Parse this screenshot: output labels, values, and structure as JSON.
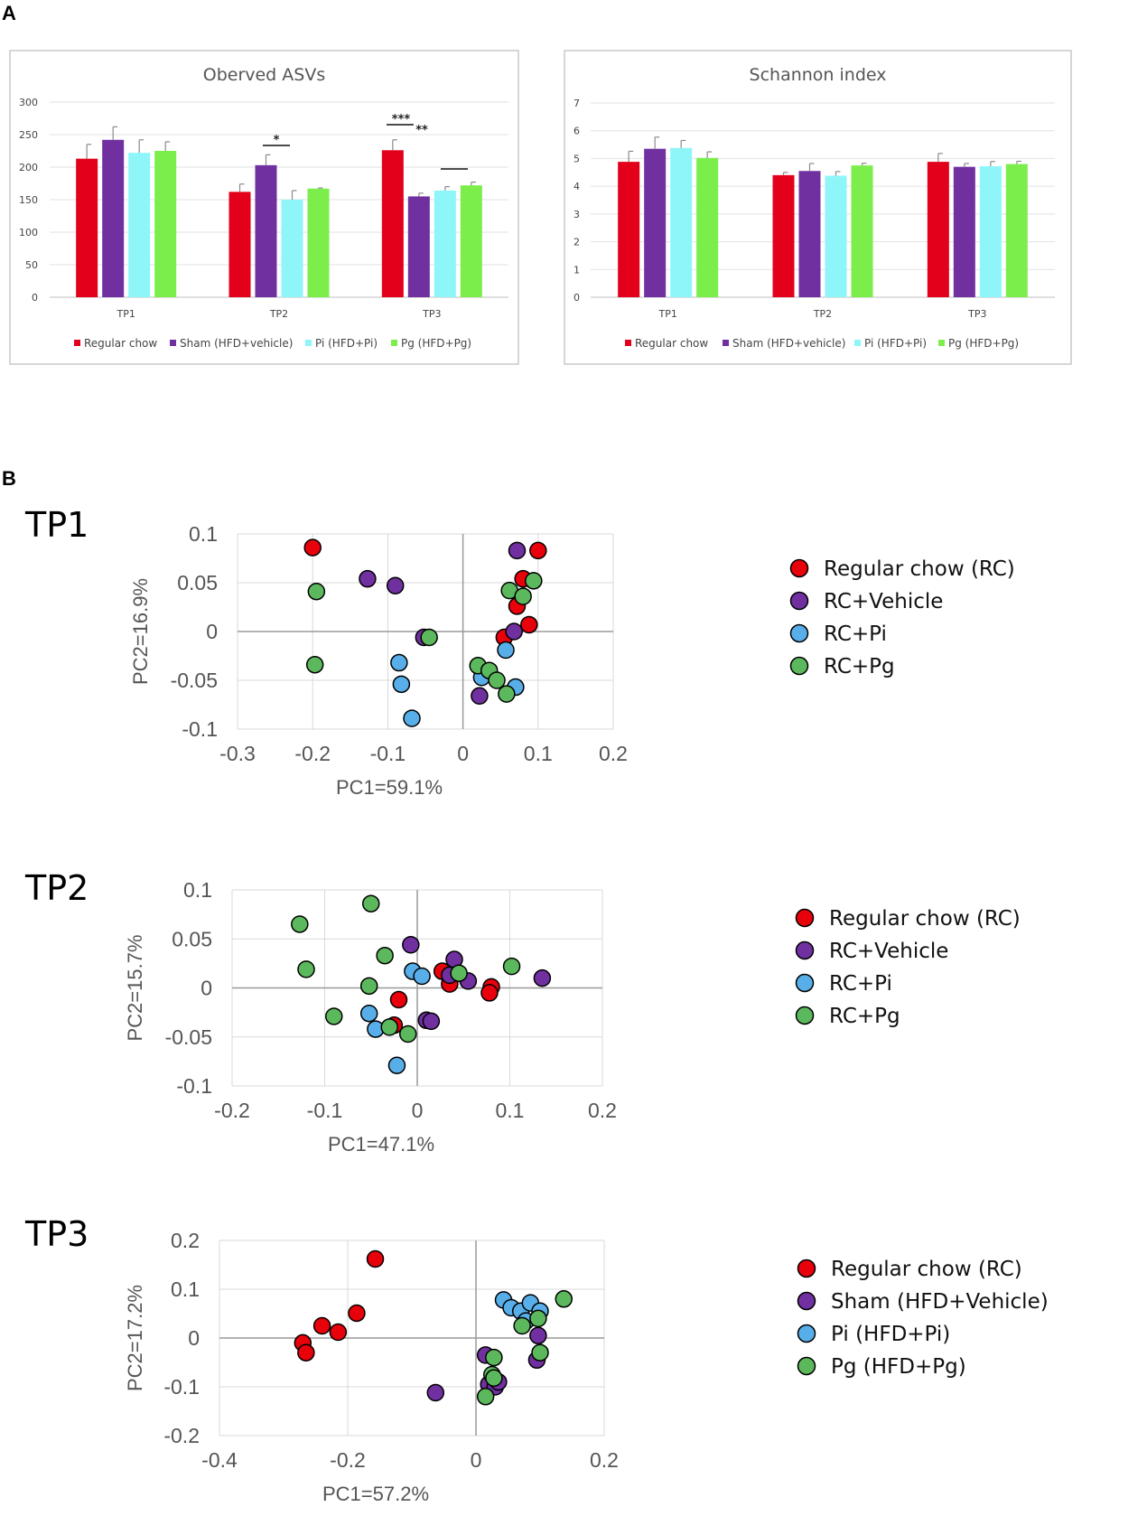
{
  "panel_labels": {
    "a": "A",
    "b": "B"
  },
  "chart_data": [
    {
      "type": "bar",
      "title": "Oberved ASVs",
      "categories": [
        "TP1",
        "TP2",
        "TP3"
      ],
      "ylim": [
        0,
        300
      ],
      "yticks": [
        "0",
        "50",
        "100",
        "150",
        "200",
        "250",
        "300"
      ],
      "series": [
        {
          "name": "Regular chow",
          "color": "#e3001b",
          "values": [
            213,
            162,
            226
          ],
          "errors": [
            22,
            12,
            16
          ]
        },
        {
          "name": "Sham (HFD+vehicle)",
          "color": "#7030a0",
          "values": [
            242,
            203,
            155
          ],
          "errors": [
            20,
            16,
            5
          ]
        },
        {
          "name": "Pi (HFD+Pi)",
          "color": "#8ef6f9",
          "values": [
            222,
            150,
            164
          ],
          "errors": [
            20,
            14,
            6
          ]
        },
        {
          "name": "Pg (HFD+Pg)",
          "color": "#7bee4c",
          "values": [
            225,
            167,
            172
          ],
          "errors": [
            14,
            1,
            5
          ]
        }
      ],
      "significance": [
        {
          "category": "TP2",
          "label": "*"
        },
        {
          "category": "TP3",
          "label": "***"
        },
        {
          "category": "TP3",
          "label": "**"
        },
        {
          "category": "TP3",
          "label": ""
        }
      ]
    },
    {
      "type": "bar",
      "title": "Schannon index",
      "categories": [
        "TP1",
        "TP2",
        "TP3"
      ],
      "ylim": [
        0,
        7
      ],
      "yticks": [
        "0",
        "1",
        "2",
        "3",
        "4",
        "5",
        "6",
        "7"
      ],
      "series": [
        {
          "name": "Regular chow",
          "color": "#e3001b",
          "values": [
            4.88,
            4.4,
            4.88
          ],
          "errors": [
            0.38,
            0.1,
            0.3
          ]
        },
        {
          "name": "Sham (HFD+vehicle)",
          "color": "#7030a0",
          "values": [
            5.35,
            4.55,
            4.7
          ],
          "errors": [
            0.42,
            0.27,
            0.12
          ]
        },
        {
          "name": "Pi (HFD+Pi)",
          "color": "#8ef6f9",
          "values": [
            5.38,
            4.38,
            4.72
          ],
          "errors": [
            0.27,
            0.15,
            0.17
          ]
        },
        {
          "name": "Pg (HFD+Pg)",
          "color": "#7bee4c",
          "values": [
            5.02,
            4.75,
            4.8
          ],
          "errors": [
            0.22,
            0.08,
            0.1
          ]
        }
      ]
    },
    {
      "type": "scatter",
      "title": "TP1",
      "xlabel": "PC1=59.1%",
      "ylabel": "PC2=16.9%",
      "xlim": [
        -0.3,
        0.2
      ],
      "ylim": [
        -0.1,
        0.1
      ],
      "xticks": [
        "-0.3",
        "-0.2",
        "-0.1",
        "0",
        "0.1",
        "0.2"
      ],
      "yticks": [
        "-0.1",
        "-0.05",
        "0",
        "0.05",
        "0.1"
      ],
      "legend": [
        "Regular chow (RC)",
        "RC+Vehicle",
        "RC+Pi",
        "RC+Pg"
      ],
      "series": [
        {
          "name": "Regular chow (RC)",
          "color": "#e8000b",
          "points": [
            [
              -0.2,
              0.086
            ],
            [
              0.1,
              0.083
            ],
            [
              0.08,
              0.054
            ],
            [
              0.072,
              0.026
            ],
            [
              0.088,
              0.007
            ],
            [
              0.055,
              -0.006
            ]
          ]
        },
        {
          "name": "RC+Vehicle",
          "color": "#7030a0",
          "points": [
            [
              -0.127,
              0.054
            ],
            [
              -0.09,
              0.047
            ],
            [
              -0.052,
              -0.006
            ],
            [
              0.072,
              0.083
            ],
            [
              0.068,
              0.0
            ],
            [
              0.022,
              -0.066
            ]
          ]
        },
        {
          "name": "RC+Pi",
          "color": "#58aee8",
          "points": [
            [
              -0.085,
              -0.032
            ],
            [
              -0.082,
              -0.054
            ],
            [
              -0.068,
              -0.089
            ],
            [
              0.057,
              -0.019
            ],
            [
              0.025,
              -0.047
            ],
            [
              0.07,
              -0.057
            ]
          ]
        },
        {
          "name": "RC+Pg",
          "color": "#5cb85c",
          "points": [
            [
              -0.195,
              0.041
            ],
            [
              -0.197,
              -0.034
            ],
            [
              -0.045,
              -0.006
            ],
            [
              0.062,
              0.042
            ],
            [
              0.094,
              0.052
            ],
            [
              0.08,
              0.036
            ],
            [
              0.02,
              -0.035
            ],
            [
              0.035,
              -0.04
            ],
            [
              0.045,
              -0.05
            ],
            [
              0.058,
              -0.064
            ]
          ]
        }
      ]
    },
    {
      "type": "scatter",
      "title": "TP2",
      "xlabel": "PC1=47.1%",
      "ylabel": "PC2=15.7%",
      "xlim": [
        -0.2,
        0.2
      ],
      "ylim": [
        -0.1,
        0.1
      ],
      "xticks": [
        "-0.2",
        "-0.1",
        "0",
        "0.1",
        "0.2"
      ],
      "yticks": [
        "-0.1",
        "-0.05",
        "0",
        "0.05",
        "0.1"
      ],
      "legend": [
        "Regular chow (RC)",
        "RC+Vehicle",
        "RC+Pi",
        "RC+Pg"
      ],
      "series": [
        {
          "name": "Regular chow (RC)",
          "color": "#e8000b",
          "points": [
            [
              -0.02,
              -0.012
            ],
            [
              0.027,
              0.017
            ],
            [
              0.035,
              0.004
            ],
            [
              0.08,
              0.001
            ],
            [
              0.078,
              -0.005
            ],
            [
              -0.025,
              -0.038
            ]
          ]
        },
        {
          "name": "RC+Vehicle",
          "color": "#7030a0",
          "points": [
            [
              -0.007,
              0.044
            ],
            [
              0.04,
              0.029
            ],
            [
              0.055,
              0.007
            ],
            [
              0.135,
              0.01
            ],
            [
              0.01,
              -0.033
            ],
            [
              0.015,
              -0.034
            ],
            [
              0.035,
              0.013
            ]
          ]
        },
        {
          "name": "RC+Pi",
          "color": "#58aee8",
          "points": [
            [
              -0.005,
              0.017
            ],
            [
              0.005,
              0.012
            ],
            [
              -0.052,
              -0.026
            ],
            [
              -0.045,
              -0.042
            ],
            [
              -0.022,
              -0.079
            ]
          ]
        },
        {
          "name": "RC+Pg",
          "color": "#5cb85c",
          "points": [
            [
              -0.127,
              0.065
            ],
            [
              -0.05,
              0.086
            ],
            [
              -0.12,
              0.019
            ],
            [
              -0.035,
              0.033
            ],
            [
              -0.052,
              0.002
            ],
            [
              -0.09,
              -0.029
            ],
            [
              -0.03,
              -0.04
            ],
            [
              -0.01,
              -0.047
            ],
            [
              0.045,
              0.015
            ],
            [
              0.102,
              0.022
            ]
          ]
        }
      ]
    },
    {
      "type": "scatter",
      "title": "TP3",
      "xlabel": "PC1=57.2%",
      "ylabel": "PC2=17.2%",
      "xlim": [
        -0.4,
        0.2
      ],
      "ylim": [
        -0.2,
        0.2
      ],
      "xticks": [
        "-0.4",
        "-0.2",
        "0",
        "0.2"
      ],
      "yticks": [
        "-0.2",
        "-0.1",
        "0",
        "0.1",
        "0.2"
      ],
      "legend": [
        "Regular chow (RC)",
        "Sham (HFD+Vehicle)",
        "Pi (HFD+Pi)",
        "Pg (HFD+Pg)"
      ],
      "series": [
        {
          "name": "Regular chow (RC)",
          "color": "#e8000b",
          "points": [
            [
              -0.157,
              0.162
            ],
            [
              -0.186,
              0.051
            ],
            [
              -0.24,
              0.025
            ],
            [
              -0.215,
              0.012
            ],
            [
              -0.27,
              -0.01
            ],
            [
              -0.265,
              -0.03
            ]
          ]
        },
        {
          "name": "Sham (HFD+Vehicle)",
          "color": "#7030a0",
          "points": [
            [
              -0.063,
              -0.112
            ],
            [
              0.015,
              -0.035
            ],
            [
              0.02,
              -0.095
            ],
            [
              0.03,
              -0.1
            ],
            [
              0.035,
              -0.09
            ],
            [
              0.097,
              0.005
            ],
            [
              0.095,
              -0.045
            ]
          ]
        },
        {
          "name": "Pi (HFD+Pi)",
          "color": "#58aee8",
          "points": [
            [
              0.043,
              0.078
            ],
            [
              0.055,
              0.062
            ],
            [
              0.07,
              0.055
            ],
            [
              0.085,
              0.072
            ],
            [
              0.1,
              0.055
            ],
            [
              0.078,
              0.035
            ]
          ]
        },
        {
          "name": "Pg (HFD+Pg)",
          "color": "#5cb85c",
          "points": [
            [
              0.137,
              0.08
            ],
            [
              0.097,
              0.04
            ],
            [
              0.072,
              0.025
            ],
            [
              0.1,
              -0.03
            ],
            [
              0.028,
              -0.04
            ],
            [
              0.025,
              -0.075
            ],
            [
              0.028,
              -0.082
            ],
            [
              0.015,
              -0.12
            ]
          ]
        }
      ]
    }
  ]
}
